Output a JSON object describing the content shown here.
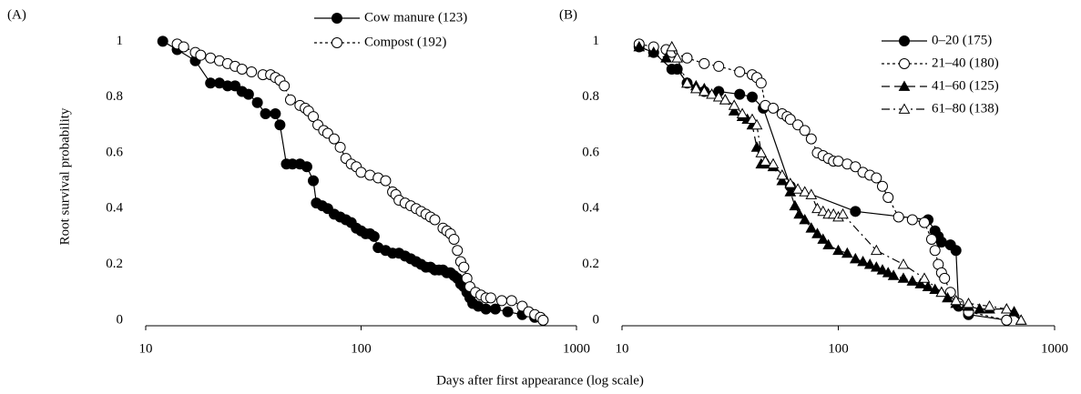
{
  "x_label": "Days after first appearance (log scale)",
  "chart_data": [
    {
      "type": "line",
      "panel_label": "(A)",
      "y_label": "Root survival probability",
      "x_scale": "log",
      "xlim": [
        10,
        1000
      ],
      "xticks": [
        10,
        100,
        1000
      ],
      "ylim": [
        -0.02,
        1.05
      ],
      "yticks": [
        0,
        0.2,
        0.4,
        0.6,
        0.8,
        1
      ],
      "legend": "upper right",
      "series": [
        {
          "name": "Cow manure (123)",
          "color": "#000000",
          "marker": "circle",
          "marker_fill": "#000000",
          "line_style": "solid",
          "x": [
            12,
            14,
            17,
            20,
            22,
            24,
            26,
            28,
            30,
            33,
            36,
            40,
            42,
            45,
            48,
            52,
            56,
            60,
            62,
            66,
            70,
            75,
            80,
            85,
            90,
            95,
            100,
            105,
            110,
            115,
            120,
            130,
            140,
            150,
            160,
            170,
            180,
            190,
            200,
            210,
            220,
            230,
            240,
            250,
            260,
            270,
            280,
            290,
            300,
            310,
            320,
            330,
            350,
            380,
            420,
            480,
            560,
            640,
            700
          ],
          "values": [
            1,
            0.97,
            0.93,
            0.85,
            0.85,
            0.84,
            0.84,
            0.82,
            0.81,
            0.78,
            0.74,
            0.74,
            0.7,
            0.56,
            0.56,
            0.56,
            0.55,
            0.5,
            0.42,
            0.41,
            0.4,
            0.38,
            0.37,
            0.36,
            0.35,
            0.33,
            0.32,
            0.31,
            0.31,
            0.3,
            0.26,
            0.25,
            0.24,
            0.24,
            0.23,
            0.22,
            0.21,
            0.2,
            0.19,
            0.19,
            0.18,
            0.18,
            0.18,
            0.17,
            0.17,
            0.16,
            0.15,
            0.13,
            0.12,
            0.1,
            0.08,
            0.06,
            0.05,
            0.04,
            0.04,
            0.03,
            0.02,
            0.01,
            0.0
          ]
        },
        {
          "name": "Compost (192)",
          "color": "#000000",
          "marker": "circle",
          "marker_fill": "#ffffff",
          "line_style": "dashed",
          "x": [
            14,
            15,
            17,
            18,
            20,
            22,
            24,
            26,
            28,
            31,
            35,
            38,
            40,
            42,
            44,
            47,
            52,
            55,
            57,
            60,
            63,
            67,
            70,
            75,
            80,
            85,
            90,
            95,
            100,
            110,
            120,
            130,
            140,
            145,
            150,
            160,
            170,
            180,
            190,
            200,
            210,
            220,
            240,
            250,
            260,
            270,
            280,
            290,
            300,
            310,
            320,
            340,
            360,
            380,
            400,
            450,
            500,
            560,
            600,
            640,
            680,
            700
          ],
          "values": [
            0.99,
            0.98,
            0.96,
            0.95,
            0.94,
            0.93,
            0.92,
            0.91,
            0.9,
            0.89,
            0.88,
            0.88,
            0.87,
            0.86,
            0.84,
            0.79,
            0.77,
            0.76,
            0.75,
            0.73,
            0.7,
            0.68,
            0.67,
            0.65,
            0.62,
            0.58,
            0.56,
            0.55,
            0.53,
            0.52,
            0.51,
            0.5,
            0.46,
            0.45,
            0.43,
            0.42,
            0.41,
            0.4,
            0.39,
            0.38,
            0.37,
            0.36,
            0.33,
            0.32,
            0.31,
            0.29,
            0.25,
            0.21,
            0.19,
            0.15,
            0.12,
            0.1,
            0.09,
            0.08,
            0.08,
            0.07,
            0.07,
            0.05,
            0.03,
            0.02,
            0.01,
            0.0
          ]
        }
      ]
    },
    {
      "type": "line",
      "panel_label": "(B)",
      "x_scale": "log",
      "xlim": [
        10,
        1000
      ],
      "xticks": [
        10,
        100,
        1000
      ],
      "ylim": [
        -0.02,
        1.05
      ],
      "yticks": [
        0,
        0.2,
        0.4,
        0.6,
        0.8,
        1
      ],
      "legend": "upper right",
      "series": [
        {
          "name": "0–20 (175)",
          "color": "#000000",
          "marker": "circle",
          "marker_fill": "#000000",
          "line_style": "solid",
          "x": [
            12,
            14,
            17,
            18,
            20,
            24,
            28,
            35,
            40,
            45,
            60,
            120,
            260,
            280,
            290,
            300,
            330,
            350,
            360,
            400,
            600
          ],
          "values": [
            0.98,
            0.96,
            0.9,
            0.9,
            0.85,
            0.82,
            0.82,
            0.81,
            0.8,
            0.76,
            0.48,
            0.39,
            0.36,
            0.32,
            0.3,
            0.28,
            0.27,
            0.25,
            0.05,
            0.02,
            0.0
          ]
        },
        {
          "name": "21–40 (180)",
          "color": "#000000",
          "marker": "circle",
          "marker_fill": "#ffffff",
          "line_style": "dashed",
          "x": [
            12,
            14,
            16,
            17,
            20,
            24,
            28,
            35,
            40,
            42,
            44,
            46,
            50,
            55,
            58,
            60,
            65,
            70,
            75,
            80,
            85,
            90,
            95,
            100,
            110,
            120,
            130,
            140,
            150,
            160,
            170,
            190,
            220,
            250,
            270,
            280,
            290,
            300,
            310,
            330,
            360,
            400,
            600
          ],
          "values": [
            0.99,
            0.98,
            0.97,
            0.96,
            0.94,
            0.92,
            0.91,
            0.89,
            0.88,
            0.87,
            0.85,
            0.77,
            0.76,
            0.74,
            0.73,
            0.72,
            0.7,
            0.68,
            0.65,
            0.6,
            0.59,
            0.58,
            0.57,
            0.57,
            0.56,
            0.55,
            0.53,
            0.52,
            0.51,
            0.48,
            0.44,
            0.37,
            0.36,
            0.35,
            0.29,
            0.25,
            0.2,
            0.17,
            0.15,
            0.1,
            0.06,
            0.03,
            0.0
          ]
        },
        {
          "name": "41–60 (125)",
          "color": "#000000",
          "marker": "triangle",
          "marker_fill": "#000000",
          "line_style": "long-dash",
          "x": [
            12,
            14,
            16,
            18,
            20,
            22,
            24,
            27,
            30,
            33,
            36,
            38,
            40,
            42,
            44,
            47,
            50,
            55,
            60,
            63,
            66,
            70,
            75,
            80,
            85,
            90,
            100,
            110,
            120,
            130,
            140,
            150,
            160,
            170,
            180,
            200,
            220,
            240,
            260,
            280,
            300,
            320,
            350,
            400,
            450,
            500,
            600,
            650,
            700
          ],
          "values": [
            0.98,
            0.96,
            0.94,
            0.9,
            0.85,
            0.84,
            0.83,
            0.81,
            0.79,
            0.75,
            0.73,
            0.72,
            0.7,
            0.62,
            0.56,
            0.56,
            0.55,
            0.5,
            0.46,
            0.41,
            0.38,
            0.36,
            0.33,
            0.31,
            0.29,
            0.27,
            0.25,
            0.24,
            0.22,
            0.21,
            0.2,
            0.19,
            0.18,
            0.17,
            0.16,
            0.15,
            0.14,
            0.13,
            0.12,
            0.11,
            0.1,
            0.08,
            0.06,
            0.05,
            0.04,
            0.04,
            0.04,
            0.03,
            0.0
          ]
        },
        {
          "name": "61–80 (138)",
          "color": "#000000",
          "marker": "triangle",
          "marker_fill": "#ffffff",
          "line_style": "dash-dot",
          "x": [
            17,
            18,
            20,
            22,
            24,
            26,
            28,
            30,
            33,
            36,
            40,
            42,
            44,
            46,
            50,
            55,
            60,
            65,
            70,
            75,
            80,
            85,
            90,
            95,
            100,
            105,
            150,
            200,
            250,
            300,
            350,
            400,
            500,
            600,
            700
          ],
          "values": [
            0.98,
            0.94,
            0.85,
            0.83,
            0.82,
            0.81,
            0.8,
            0.79,
            0.77,
            0.74,
            0.72,
            0.7,
            0.6,
            0.57,
            0.56,
            0.52,
            0.49,
            0.47,
            0.46,
            0.45,
            0.4,
            0.39,
            0.38,
            0.38,
            0.37,
            0.38,
            0.25,
            0.2,
            0.15,
            0.1,
            0.07,
            0.06,
            0.05,
            0.04,
            0.0
          ]
        }
      ]
    }
  ]
}
